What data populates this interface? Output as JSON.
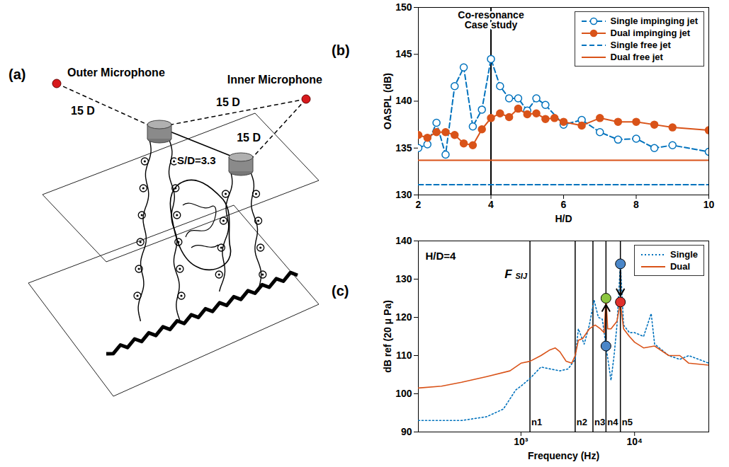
{
  "diagram": {
    "panel_label": "(a)",
    "outer_microphone": "Outer Microphone",
    "inner_microphone": "Inner Microphone",
    "distance_labels": [
      "15 D",
      "15 D",
      "15 D"
    ],
    "spacing_label": "S/D=3.3"
  },
  "chart_data": [
    {
      "type": "line",
      "panel_label": "(b)",
      "x_label": "H/D",
      "y_label": "OASPL (dB)",
      "xlim": [
        2,
        10
      ],
      "xticks": [
        2,
        4,
        6,
        8,
        10
      ],
      "ylim": [
        130,
        150
      ],
      "yticks": [
        130,
        135,
        140,
        145,
        150
      ],
      "grid": false,
      "legend": "top-right",
      "annotations": [
        {
          "x": 4,
          "text_lines": [
            "Co-resonance",
            "Case study"
          ]
        }
      ],
      "series": [
        {
          "name": "Single impinging jet",
          "color": "#0072BD",
          "line_style": "dashed",
          "marker": "circle-open",
          "x": [
            2,
            2.25,
            2.5,
            2.75,
            3,
            3.25,
            3.5,
            3.75,
            4,
            4.25,
            4.5,
            4.75,
            5,
            5.25,
            5.5,
            6,
            6.5,
            7,
            7.5,
            8,
            8.5,
            9,
            10
          ],
          "values": [
            135.0,
            135.4,
            137.7,
            134.3,
            141.6,
            143.6,
            137.3,
            139.1,
            144.5,
            141.6,
            140.3,
            140.3,
            139.0,
            140.3,
            139.6,
            137.5,
            138.0,
            136.7,
            135.9,
            136.0,
            135.0,
            135.3,
            134.6
          ]
        },
        {
          "name": "Dual impinging jet",
          "color": "#D95319",
          "line_style": "solid",
          "marker": "circle-filled",
          "x": [
            2,
            2.25,
            2.5,
            2.75,
            3,
            3.25,
            3.5,
            3.75,
            4,
            4.25,
            4.5,
            4.75,
            5,
            5.25,
            5.5,
            5.75,
            6,
            6.5,
            7,
            7.5,
            8,
            8.5,
            9,
            10
          ],
          "values": [
            136.4,
            136.1,
            136.7,
            136.7,
            136.4,
            135.5,
            135.3,
            137.0,
            138.2,
            138.7,
            138.3,
            139.2,
            138.6,
            138.7,
            138.1,
            138.2,
            137.8,
            137.4,
            138.2,
            137.8,
            137.8,
            137.5,
            137.2,
            136.9
          ]
        },
        {
          "name": "Single free jet",
          "color": "#0072BD",
          "line_style": "dashed",
          "marker": "none",
          "x": [
            2,
            10
          ],
          "values": [
            131.1,
            131.1
          ]
        },
        {
          "name": "Dual free jet",
          "color": "#D95319",
          "line_style": "solid",
          "marker": "none",
          "x": [
            2,
            10
          ],
          "values": [
            133.7,
            133.7
          ]
        }
      ]
    },
    {
      "type": "line",
      "panel_label": "(c)",
      "log": "x",
      "x_label": "Frequency (Hz)",
      "y_label": "dB ref (20 μ Pa)",
      "xlim": [
        125,
        45000
      ],
      "xticks": [
        {
          "value": 1000,
          "label": "10³"
        },
        {
          "value": 10000,
          "label": "10⁴"
        }
      ],
      "ylim": [
        90,
        140
      ],
      "yticks": [
        90,
        100,
        110,
        120,
        130,
        140
      ],
      "grid": false,
      "legend": "top-right",
      "case_label": "H/D=4",
      "vertical_lines": [
        {
          "x": 1200,
          "label": "n1"
        },
        {
          "x": 3000,
          "label": "n2"
        },
        {
          "x": 4300,
          "label": "n3"
        },
        {
          "x": 5600,
          "label": "n4"
        },
        {
          "x": 7500,
          "label": "n5"
        }
      ],
      "frequency_label": {
        "x": 1200,
        "text": "F",
        "subscript": "SIJ"
      },
      "highlights": [
        {
          "x": 5600,
          "from": 112.5,
          "to": 125,
          "from_color": "#4a86c8",
          "to_color": "#8cc63f"
        },
        {
          "x": 7500,
          "from": 134,
          "to": 124,
          "from_color": "#4a86c8",
          "to_color": "#e0302c"
        }
      ],
      "series": [
        {
          "name": "Single",
          "color": "#0072BD",
          "line_style": "dotted",
          "marker": "none",
          "x": [
            125,
            200,
            300,
            500,
            700,
            900,
            1000,
            1200,
            1500,
            1800,
            2200,
            2600,
            3000,
            3200,
            3600,
            4000,
            4400,
            4800,
            5200,
            5600,
            6200,
            6600,
            7000,
            7500,
            8000,
            9000,
            10000,
            12000,
            14000,
            15000,
            20000,
            25000,
            30000,
            45000
          ],
          "values": [
            93,
            93,
            93,
            94,
            96,
            101,
            102,
            104,
            107,
            106.5,
            106,
            106.5,
            109,
            117,
            113,
            118,
            124.5,
            120,
            119.5,
            112.5,
            103.5,
            110,
            118,
            134,
            118,
            116,
            116,
            115,
            121,
            113,
            110,
            109,
            110,
            108
          ]
        },
        {
          "name": "Dual",
          "color": "#D95319",
          "line_style": "solid",
          "marker": "none",
          "x": [
            125,
            200,
            300,
            500,
            800,
            1000,
            1200,
            1500,
            1800,
            2000,
            2200,
            2500,
            2800,
            3000,
            3200,
            3500,
            4000,
            4500,
            5000,
            5400,
            5600,
            5800,
            6200,
            7000,
            7500,
            8000,
            9000,
            10000,
            12000,
            15000,
            20000,
            25000,
            30000,
            45000
          ],
          "values": [
            101.5,
            102,
            103,
            104.5,
            106,
            108,
            108.5,
            110,
            111.5,
            112,
            111,
            108.5,
            108,
            110,
            114,
            114.5,
            117,
            118,
            117,
            116,
            125,
            117,
            117,
            119,
            124,
            117,
            115,
            113.5,
            112,
            112.5,
            110,
            110,
            108,
            107.5
          ]
        }
      ]
    }
  ]
}
